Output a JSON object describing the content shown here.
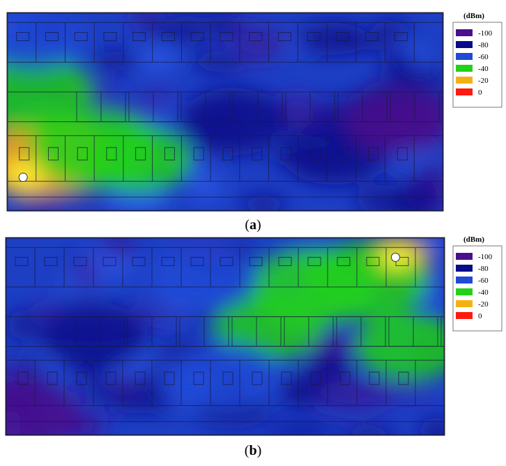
{
  "chart_data": [
    {
      "type": "heatmap",
      "panel_label": "a",
      "legend": {
        "title": "(dBm)",
        "placement": "right",
        "entries": [
          {
            "label": "-100",
            "value": -100,
            "color": "#4b0f8c"
          },
          {
            "label": "-80",
            "value": -80,
            "color": "#0a0a8a"
          },
          {
            "label": "-60",
            "value": -60,
            "color": "#1f4ad6"
          },
          {
            "label": "-40",
            "value": -40,
            "color": "#22d11a"
          },
          {
            "label": "-20",
            "value": -20,
            "color": "#f4b114"
          },
          {
            "label": "0",
            "value": 0,
            "color": "#ff1a10"
          }
        ]
      },
      "transmitter_position": "bottom-left",
      "hotspot": [
        {
          "x": 0.04,
          "y": 0.82,
          "value": -12
        },
        {
          "x": 0.1,
          "y": 0.72,
          "value": -30
        },
        {
          "x": 0.05,
          "y": 0.4,
          "value": -38
        },
        {
          "x": 0.2,
          "y": 0.68,
          "value": -38
        },
        {
          "x": 0.3,
          "y": 0.74,
          "value": -45
        },
        {
          "x": 0.06,
          "y": 0.12,
          "value": -52
        },
        {
          "x": 0.52,
          "y": 0.55,
          "value": -75
        },
        {
          "x": 0.75,
          "y": 0.7,
          "value": -85
        },
        {
          "x": 0.9,
          "y": 0.55,
          "value": -95
        }
      ]
    },
    {
      "type": "heatmap",
      "panel_label": "b",
      "legend": {
        "title": "(dBm)",
        "placement": "right",
        "entries": [
          {
            "label": "-100",
            "value": -100,
            "color": "#4b0f8c"
          },
          {
            "label": "-80",
            "value": -80,
            "color": "#0a0a8a"
          },
          {
            "label": "-60",
            "value": -60,
            "color": "#1f4ad6"
          },
          {
            "label": "-40",
            "value": -40,
            "color": "#22d11a"
          },
          {
            "label": "-20",
            "value": -20,
            "color": "#f4b114"
          },
          {
            "label": "0",
            "value": 0,
            "color": "#ff1a10"
          }
        ]
      },
      "transmitter_position": "top-right",
      "hotspot": [
        {
          "x": 0.89,
          "y": 0.1,
          "value": -15
        },
        {
          "x": 0.82,
          "y": 0.22,
          "value": -32
        },
        {
          "x": 0.7,
          "y": 0.25,
          "value": -40
        },
        {
          "x": 0.6,
          "y": 0.45,
          "value": -50
        },
        {
          "x": 0.5,
          "y": 0.7,
          "value": -60
        },
        {
          "x": 0.92,
          "y": 0.55,
          "value": -45
        },
        {
          "x": 0.45,
          "y": 0.2,
          "value": -55
        },
        {
          "x": 0.2,
          "y": 0.5,
          "value": -82
        },
        {
          "x": 0.05,
          "y": 0.9,
          "value": -95
        }
      ]
    }
  ],
  "captions": {
    "a": "a",
    "b": "b"
  }
}
